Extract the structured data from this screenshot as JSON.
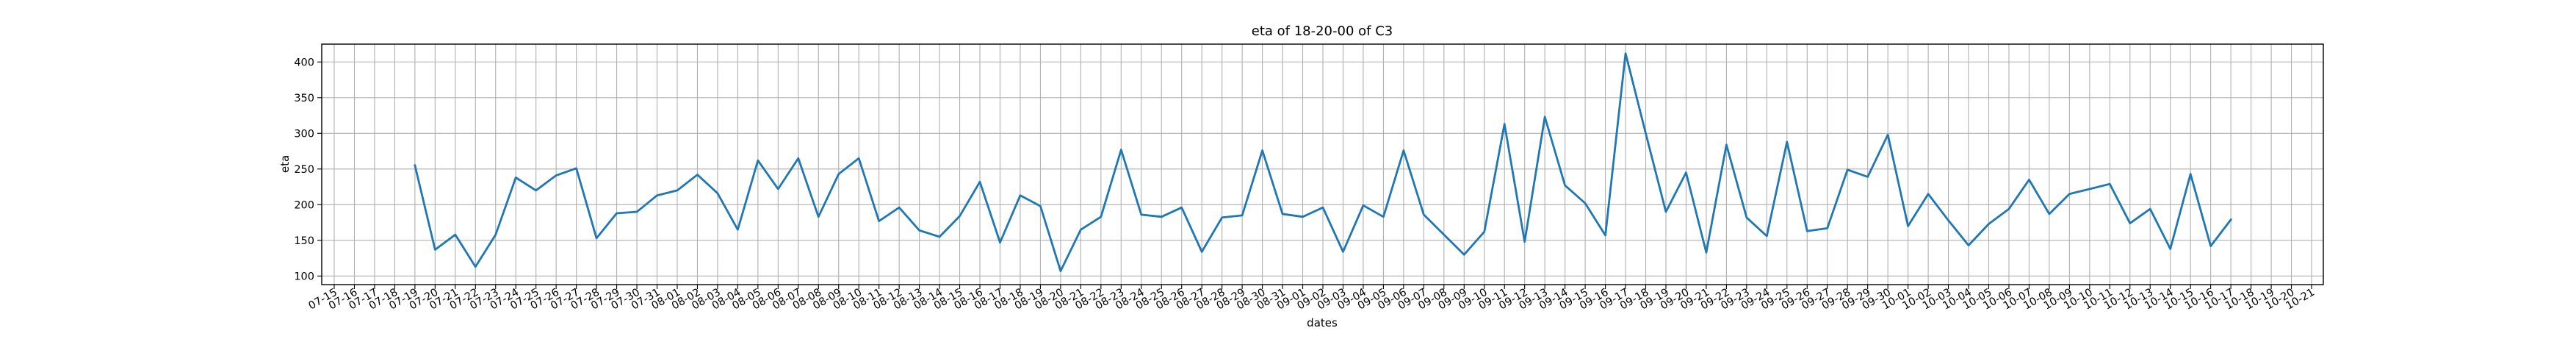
{
  "chart_data": {
    "type": "line",
    "title": "eta of 18-20-00 of C3",
    "xlabel": "dates",
    "ylabel": "eta",
    "grid": true,
    "legend": "none",
    "line_color": "#1f77b4",
    "y_ticks": [
      100,
      150,
      200,
      250,
      300,
      350,
      400
    ],
    "ylim": [
      88,
      425
    ],
    "x_ticks": [
      "07-15",
      "07-16",
      "07-17",
      "07-18",
      "07-19",
      "07-20",
      "07-21",
      "07-22",
      "07-23",
      "07-24",
      "07-25",
      "07-26",
      "07-27",
      "07-28",
      "07-29",
      "07-30",
      "07-31",
      "08-01",
      "08-02",
      "08-03",
      "08-04",
      "08-05",
      "08-06",
      "08-07",
      "08-08",
      "08-09",
      "08-10",
      "08-11",
      "08-12",
      "08-13",
      "08-14",
      "08-15",
      "08-16",
      "08-17",
      "08-18",
      "08-19",
      "08-20",
      "08-21",
      "08-22",
      "08-23",
      "08-24",
      "08-25",
      "08-26",
      "08-27",
      "08-28",
      "08-29",
      "08-30",
      "08-31",
      "09-01",
      "09-02",
      "09-03",
      "09-04",
      "09-05",
      "09-06",
      "09-07",
      "09-08",
      "09-09",
      "09-10",
      "09-11",
      "09-12",
      "09-13",
      "09-14",
      "09-15",
      "09-16",
      "09-17",
      "09-18",
      "09-19",
      "09-20",
      "09-21",
      "09-22",
      "09-23",
      "09-24",
      "09-25",
      "09-26",
      "09-27",
      "09-28",
      "09-29",
      "09-30",
      "10-01",
      "10-02",
      "10-03",
      "10-04",
      "10-05",
      "10-06",
      "10-07",
      "10-08",
      "10-09",
      "10-10",
      "10-11",
      "10-12",
      "10-13",
      "10-14",
      "10-15",
      "10-16",
      "10-17",
      "10-18",
      "10-19",
      "10-20",
      "10-21"
    ],
    "series": [
      {
        "x": [
          "07-19",
          "07-20",
          "07-21",
          "07-22",
          "07-23",
          "07-24",
          "07-25",
          "07-26",
          "07-27",
          "07-28",
          "07-29",
          "07-30",
          "07-31",
          "08-01",
          "08-02",
          "08-03",
          "08-04",
          "08-05",
          "08-06",
          "08-07",
          "08-08",
          "08-09",
          "08-10",
          "08-11",
          "08-12",
          "08-13",
          "08-14",
          "08-15",
          "08-16",
          "08-17",
          "08-18",
          "08-19",
          "08-20",
          "08-21",
          "08-22",
          "08-23",
          "08-24",
          "08-25",
          "08-26",
          "08-27",
          "08-28",
          "08-29",
          "08-30",
          "08-31",
          "09-01",
          "09-02",
          "09-03",
          "09-04",
          "09-05",
          "09-06",
          "09-07",
          "09-08",
          "09-09",
          "09-10",
          "09-11",
          "09-12",
          "09-13",
          "09-14",
          "09-15",
          "09-16",
          "09-17",
          "09-18",
          "09-19",
          "09-20",
          "09-21",
          "09-22",
          "09-23",
          "09-24",
          "09-25",
          "09-26",
          "09-27",
          "09-28",
          "09-29",
          "09-30",
          "10-01",
          "10-02",
          "10-03",
          "10-04",
          "10-05",
          "10-06",
          "10-07",
          "10-08",
          "10-09",
          "10-10",
          "10-11",
          "10-12",
          "10-13",
          "10-14",
          "10-15",
          "10-16",
          "10-17"
        ],
        "values": [
          255,
          137,
          158,
          113,
          158,
          238,
          220,
          241,
          251,
          153,
          188,
          190,
          213,
          220,
          242,
          216,
          165,
          262,
          222,
          265,
          183,
          243,
          265,
          177,
          196,
          164,
          155,
          184,
          232,
          147,
          213,
          198,
          107,
          165,
          183,
          277,
          186,
          183,
          196,
          134,
          182,
          185,
          276,
          187,
          183,
          196,
          134,
          199,
          183,
          276,
          186,
          158,
          130,
          162,
          313,
          148,
          323,
          227,
          202,
          157,
          412,
          300,
          190,
          245,
          133,
          284,
          182,
          156,
          288,
          163,
          167,
          249,
          239,
          298,
          170,
          215,
          178,
          143,
          173,
          194,
          235,
          187,
          215,
          222,
          229,
          174,
          194,
          138,
          243,
          142,
          179
        ]
      }
    ]
  }
}
